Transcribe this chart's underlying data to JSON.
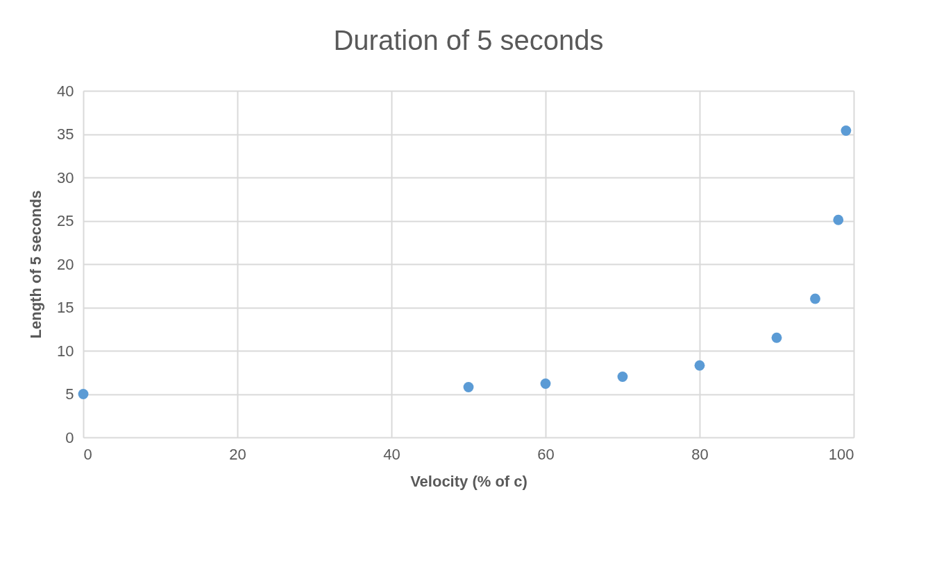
{
  "chart_data": {
    "type": "scatter",
    "title": "Duration  of 5 seconds",
    "xlabel": "Velocity (% of c)",
    "ylabel": "Length of 5 seconds",
    "x": [
      0,
      50,
      60,
      70,
      80,
      90,
      95,
      98,
      99
    ],
    "series": [
      {
        "color": "#5b9bd5",
        "values": [
          5,
          5.8,
          6.2,
          7,
          8.3,
          11.5,
          16,
          25.1,
          35.4
        ]
      }
    ],
    "xlim": [
      0,
      100
    ],
    "xticks": [
      0,
      20,
      40,
      60,
      80,
      100
    ],
    "ylim": [
      0,
      40
    ],
    "yticks": [
      0,
      5,
      10,
      15,
      20,
      25,
      30,
      35,
      40
    ],
    "grid": true,
    "marker": "circle"
  }
}
